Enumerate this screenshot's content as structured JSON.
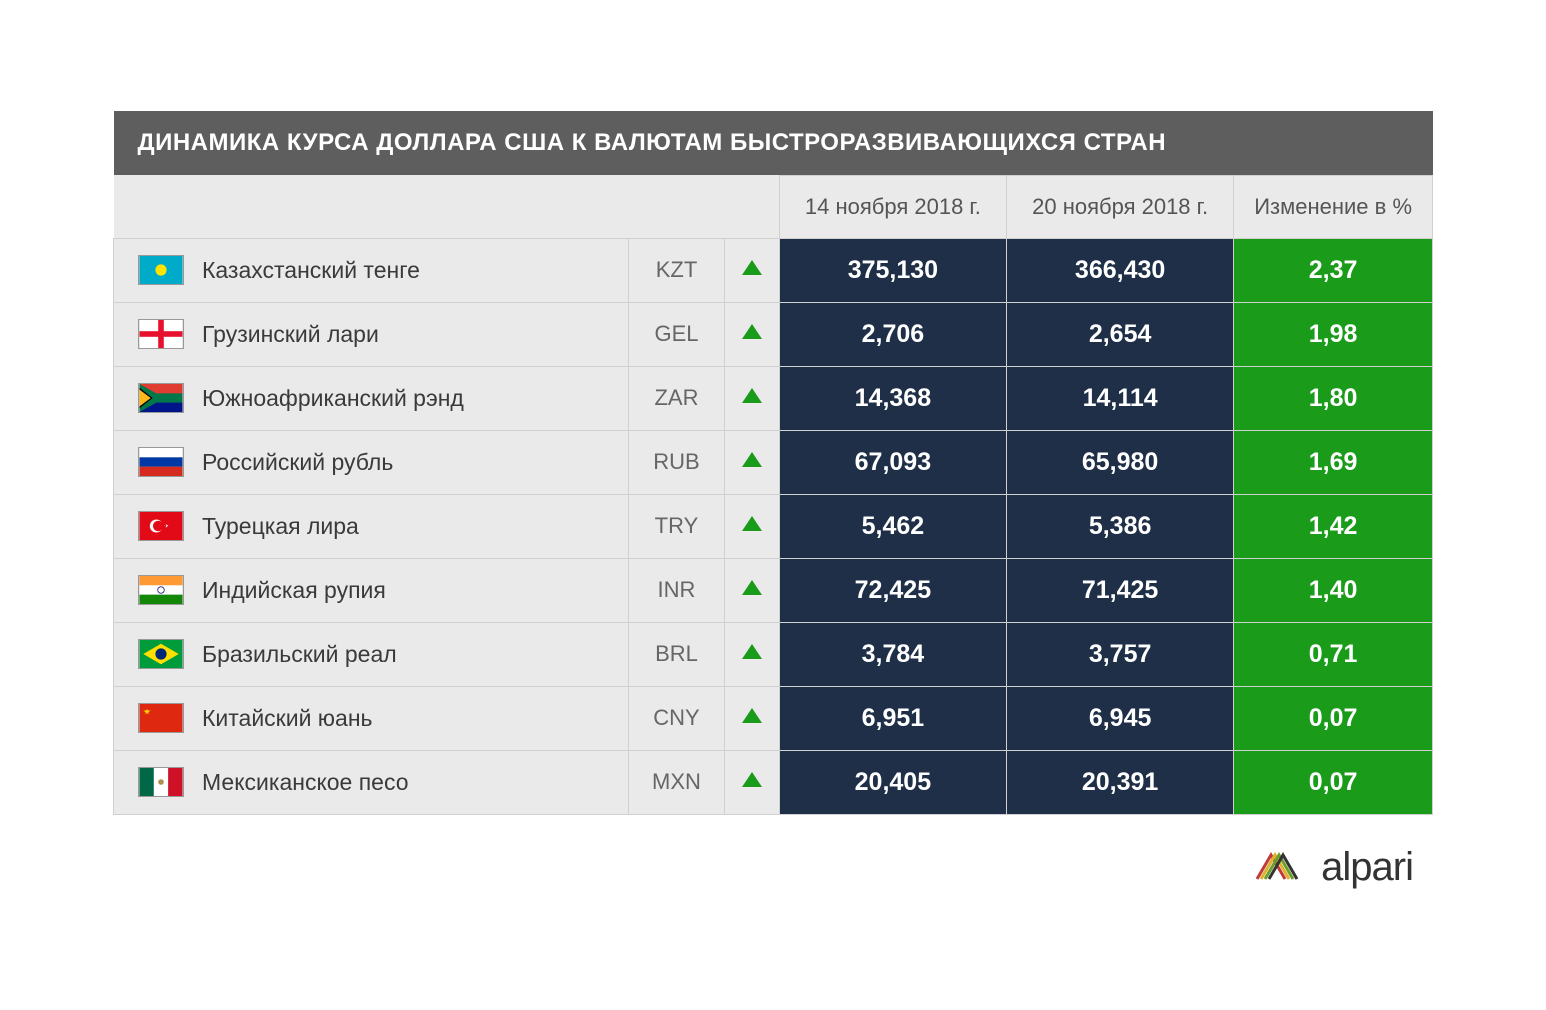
{
  "table": {
    "title": "ДИНАМИКА КУРСА ДОЛЛАРА США К ВАЛЮТАМ БЫСТРОРАЗВИВАЮЩИХСЯ СТРАН",
    "columns": {
      "date_prev": "14 ноября 2018 г.",
      "date_curr": "20 ноября 2018 г.",
      "change": "Изменение в %"
    },
    "rows": [
      {
        "name": "Казахстанский тенге",
        "code": "KZT",
        "trend": "up",
        "prev": "375,130",
        "curr": "366,430",
        "change": "2,37",
        "flag": "kz"
      },
      {
        "name": "Грузинский лари",
        "code": "GEL",
        "trend": "up",
        "prev": "2,706",
        "curr": "2,654",
        "change": "1,98",
        "flag": "ge"
      },
      {
        "name": "Южноафриканский рэнд",
        "code": "ZAR",
        "trend": "up",
        "prev": "14,368",
        "curr": "14,114",
        "change": "1,80",
        "flag": "za"
      },
      {
        "name": "Российский рубль",
        "code": "RUB",
        "trend": "up",
        "prev": "67,093",
        "curr": "65,980",
        "change": "1,69",
        "flag": "ru"
      },
      {
        "name": "Турецкая лира",
        "code": "TRY",
        "trend": "up",
        "prev": "5,462",
        "curr": "5,386",
        "change": "1,42",
        "flag": "tr"
      },
      {
        "name": "Индийская рупия",
        "code": "INR",
        "trend": "up",
        "prev": "72,425",
        "curr": "71,425",
        "change": "1,40",
        "flag": "in"
      },
      {
        "name": "Бразильский реал",
        "code": "BRL",
        "trend": "up",
        "prev": "3,784",
        "curr": "3,757",
        "change": "0,71",
        "flag": "br"
      },
      {
        "name": "Китайский юань",
        "code": "CNY",
        "trend": "up",
        "prev": "6,951",
        "curr": "6,945",
        "change": "0,07",
        "flag": "cn"
      },
      {
        "name": "Мексиканское песо",
        "code": "MXN",
        "trend": "up",
        "prev": "20,405",
        "curr": "20,391",
        "change": "0,07",
        "flag": "mx"
      }
    ],
    "colors": {
      "title_bg": "#5e5e5e",
      "title_text": "#ffffff",
      "header_bg": "#eaeaea",
      "header_text": "#555555",
      "name_cell_bg": "#eaeaea",
      "name_text": "#3a3a3a",
      "code_text": "#666666",
      "value_bg": "#1e2f47",
      "value_text": "#ffffff",
      "change_bg": "#1a9b1a",
      "change_text": "#ffffff",
      "trend_up": "#1a9b1a",
      "border": "#d0d0d0"
    },
    "fontsize": {
      "title": 24,
      "header": 22,
      "name": 23,
      "code": 22,
      "value": 25,
      "change": 25
    }
  },
  "logo": {
    "text": "alpari",
    "text_color": "#333333",
    "mark_colors": [
      "#c03a3a",
      "#e0b030",
      "#6aa02a",
      "#2a7aa0"
    ]
  }
}
